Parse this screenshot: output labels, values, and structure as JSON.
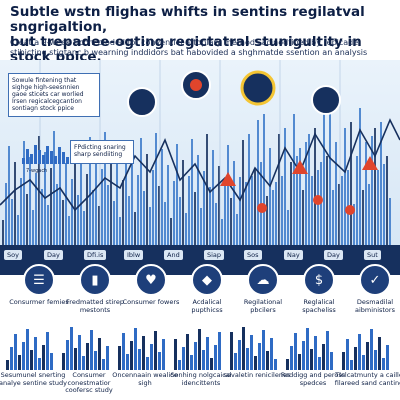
{
  "title_line1": "Subtle wstn flighas whifts in sentins regilatval sngrigaltion,",
  "title_line2": "but trepadee-ogting regictatral stunigultity in stock ppice.",
  "subtitle_line1": "Creat a 9-week frconcoloded for conventiel attoplary methods acinodtined by replcade",
  "subtitle_line2": "stibicting stigtanc b wearning inddidors bat habovided a shghmatde ssention an analysis techiqus.",
  "callout_text": "Sowule fintening that sighge high-seesnnien gaoe sticets car worlied Irsen regicalcegcantion sontiagn stock ppice",
  "callout2_text": "FPdicting snaring sharp sendiiting",
  "mini_label": "7-wgach",
  "timeline_labels": [
    "Soy",
    "Day",
    "Dfi.is",
    "Iblw",
    "And",
    "Siap",
    "Sos",
    "Nay",
    "Day",
    "Sut"
  ],
  "categories": [
    {
      "caption": "Consurmer femies",
      "icon": "document-icon"
    },
    {
      "caption": "Fredmatted stirep mestonts",
      "icon": "chart-bars-icon"
    },
    {
      "caption": "Consumer fowers",
      "icon": "heart-icon"
    },
    {
      "caption": "Acdalical pupthicss",
      "icon": "mask-icon"
    },
    {
      "caption": "Regilational pbcilers",
      "icon": "cloud-icon"
    },
    {
      "caption": "Reglalical spacheliss",
      "icon": "dollar-icon"
    },
    {
      "caption": "Desmadilal aibministors",
      "icon": "check-icon"
    }
  ],
  "bottom_captions": [
    "Sesumunel snerting analye sentine study",
    "Consumer conestmatior coofersc study",
    "Oncennaain wealice sigh",
    "Sonhing nolgcaical idencittents",
    "sevaletin renicilenes",
    "Reddigg and peross spedces",
    "Tlelcatmunty a caille filareed sand canting"
  ],
  "colors": {
    "navy": "#16305e",
    "blue": "#2f6bc4",
    "light_blue": "#d6e6f5",
    "alert_red": "#e0452c",
    "accent_yellow": "#f4c534"
  }
}
